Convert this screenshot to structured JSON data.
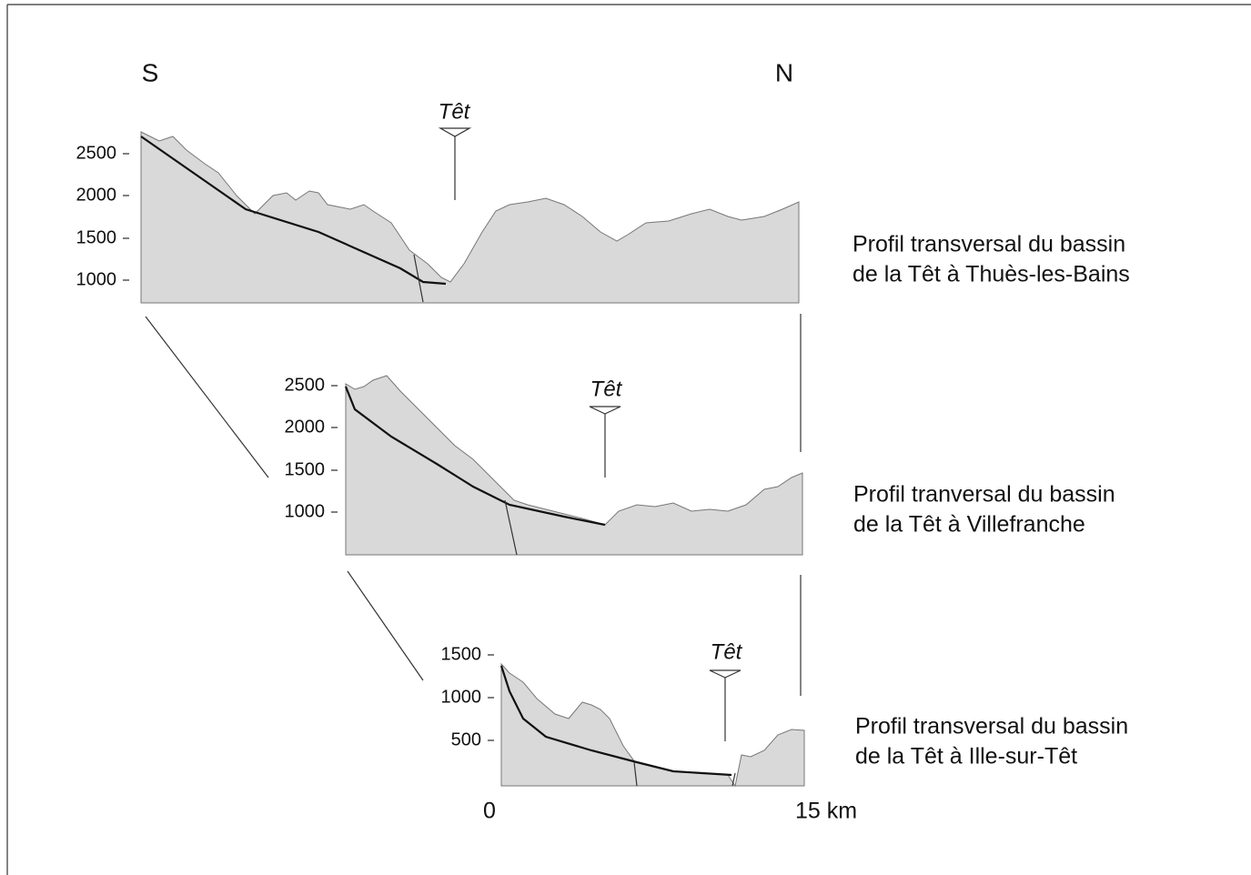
{
  "labels": {
    "south": "S",
    "north": "N"
  },
  "profiles": [
    {
      "river": "Têt",
      "yticks": [
        2500,
        2000,
        1500,
        1000
      ],
      "caption": [
        "Profil transversal du bassin",
        "de la Têt à Thuès-les-Bains"
      ]
    },
    {
      "river": "Têt",
      "yticks": [
        2500,
        2000,
        1500,
        1000
      ],
      "caption": [
        "Profil tranversal du bassin",
        "de la Têt à Villefranche"
      ]
    },
    {
      "river": "Têt",
      "yticks": [
        1500,
        1000,
        500
      ],
      "caption": [
        "Profil transversal du bassin",
        "de la Têt à Ille-sur-Têt"
      ]
    }
  ],
  "scale": {
    "start": "0",
    "end": "15 km"
  }
}
